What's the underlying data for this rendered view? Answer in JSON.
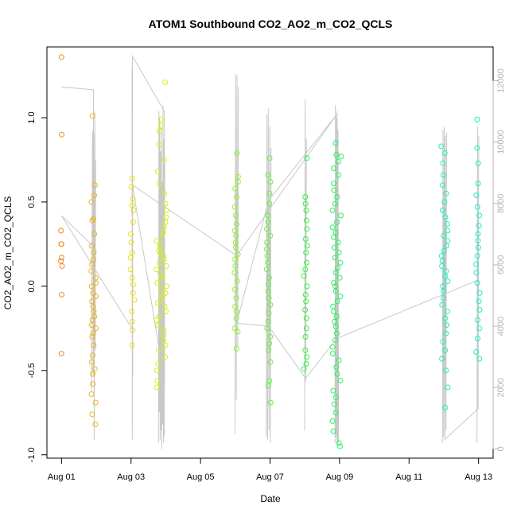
{
  "chart_data": {
    "type": "scatter",
    "title": "ATOM1 Southbound CO2_AO2_m_CO2_QCLS",
    "xlabel": "Date",
    "ylabel": "CO2_AO2_m_CO2_QCLS",
    "x_ticks": [
      {
        "day": 0,
        "label": "Aug 01"
      },
      {
        "day": 2,
        "label": "Aug 03"
      },
      {
        "day": 4,
        "label": "Aug 05"
      },
      {
        "day": 6,
        "label": "Aug 07"
      },
      {
        "day": 8,
        "label": "Aug 09"
      },
      {
        "day": 10,
        "label": "Aug 11"
      },
      {
        "day": 12,
        "label": "Aug 13"
      }
    ],
    "xlim": [
      -0.42,
      12.42
    ],
    "ylim": [
      -1.02,
      1.42
    ],
    "y_ticks": [
      -1.0,
      -0.5,
      0.0,
      0.5,
      1.0
    ],
    "y_tick_labels": [
      "-1.0",
      "-0.5",
      "0.0",
      "0.5",
      "1.0"
    ],
    "y2lim": [
      -300,
      13100
    ],
    "y2_ticks": [
      0,
      2000,
      4000,
      6000,
      8000,
      10000,
      12000
    ],
    "y2_tick_labels": [
      "0",
      "2000",
      "4000",
      "6000",
      "8000",
      "10000",
      "12000"
    ],
    "grid": false,
    "legend": "none",
    "colors": {
      "points_gradient": [
        "#f28c28",
        "#e8ee10",
        "#98f52a",
        "#27f43e",
        "#1af2a6",
        "#17f0c8"
      ],
      "altitude_line": "#c8c8c8",
      "right_axis": "#b3b3b3"
    },
    "point_groups": [
      {
        "day": 0.0,
        "spread": 0.02,
        "values": [
          1.36,
          0.9,
          0.33,
          0.25,
          0.25,
          0.17,
          0.15,
          0.12,
          -0.05,
          -0.4
        ]
      },
      {
        "day": 0.92,
        "spread": 0.07,
        "values": [
          1.01,
          0.6,
          0.54,
          0.5,
          0.4,
          0.39,
          0.31,
          0.24,
          0.2,
          0.16,
          0.13,
          0.09,
          0.05,
          0.02,
          0.0,
          -0.04,
          -0.06,
          -0.09,
          -0.12,
          -0.15,
          -0.18,
          -0.2,
          -0.23,
          -0.25,
          -0.28,
          -0.3,
          -0.35,
          -0.41,
          -0.45,
          -0.49,
          -0.52,
          -0.58,
          -0.64,
          -0.69,
          -0.76,
          -0.82
        ]
      },
      {
        "day": 2.04,
        "spread": 0.06,
        "values": [
          0.64,
          0.59,
          0.52,
          0.48,
          0.45,
          0.38,
          0.31,
          0.26,
          0.2,
          0.17,
          0.1,
          0.05,
          0.01,
          -0.04,
          -0.08,
          -0.15,
          -0.21,
          -0.26,
          -0.35
        ]
      },
      {
        "day": 2.88,
        "spread": 0.15,
        "values": [
          1.21,
          0.99,
          0.95,
          0.92,
          0.84,
          0.75,
          0.68,
          0.61,
          0.55,
          0.49,
          0.45,
          0.41,
          0.38,
          0.35,
          0.32,
          0.3,
          0.27,
          0.25,
          0.23,
          0.21,
          0.2,
          0.18,
          0.16,
          0.14,
          0.12,
          0.1,
          0.08,
          0.06,
          0.04,
          0.02,
          0.0,
          -0.02,
          -0.04,
          -0.06,
          -0.08,
          -0.1,
          -0.12,
          -0.15,
          -0.18,
          -0.2,
          -0.23,
          -0.26,
          -0.29,
          -0.32,
          -0.35,
          -0.38,
          -0.42,
          -0.46,
          -0.5,
          -0.56,
          -0.6
        ]
      },
      {
        "day": 5.04,
        "spread": 0.06,
        "values": [
          0.79,
          0.65,
          0.62,
          0.58,
          0.53,
          0.47,
          0.42,
          0.37,
          0.33,
          0.3,
          0.26,
          0.23,
          0.19,
          0.16,
          0.12,
          0.08,
          0.03,
          -0.02,
          -0.07,
          -0.12,
          -0.15,
          -0.19,
          -0.25,
          -0.27,
          -0.37
        ]
      },
      {
        "day": 5.96,
        "spread": 0.06,
        "values": [
          0.76,
          0.66,
          0.62,
          0.55,
          0.49,
          0.42,
          0.38,
          0.34,
          0.3,
          0.26,
          0.22,
          0.18,
          0.14,
          0.1,
          0.05,
          0.01,
          -0.03,
          -0.07,
          -0.11,
          -0.16,
          -0.21,
          -0.25,
          -0.3,
          -0.34,
          -0.38,
          -0.45,
          -0.56,
          -0.59,
          -0.69
        ]
      },
      {
        "day": 7.02,
        "spread": 0.05,
        "values": [
          0.76,
          0.53,
          0.49,
          0.45,
          0.39,
          0.34,
          0.28,
          0.24,
          0.2,
          0.14,
          0.1,
          0.06,
          0.0,
          -0.05,
          -0.09,
          -0.14,
          -0.19,
          -0.25,
          -0.3,
          -0.38,
          -0.42,
          -0.46,
          -0.49
        ]
      },
      {
        "day": 7.92,
        "spread": 0.13,
        "values": [
          0.85,
          0.78,
          0.77,
          0.74,
          0.7,
          0.66,
          0.61,
          0.57,
          0.53,
          0.49,
          0.45,
          0.42,
          0.38,
          0.35,
          0.32,
          0.29,
          0.26,
          0.23,
          0.2,
          0.17,
          0.14,
          0.11,
          0.08,
          0.05,
          0.02,
          0.0,
          -0.03,
          -0.06,
          -0.09,
          -0.12,
          -0.15,
          -0.18,
          -0.21,
          -0.24,
          -0.28,
          -0.32,
          -0.36,
          -0.4,
          -0.44,
          -0.48,
          -0.52,
          -0.56,
          -0.62,
          -0.66,
          -0.7,
          -0.75,
          -0.8,
          -0.86,
          -0.93,
          -0.95
        ]
      },
      {
        "day": 11.02,
        "spread": 0.1,
        "values": [
          0.83,
          0.79,
          0.73,
          0.66,
          0.6,
          0.55,
          0.5,
          0.45,
          0.41,
          0.37,
          0.33,
          0.3,
          0.27,
          0.24,
          0.21,
          0.18,
          0.15,
          0.12,
          0.09,
          0.06,
          0.03,
          0.0,
          -0.03,
          -0.07,
          -0.11,
          -0.15,
          -0.19,
          -0.23,
          -0.28,
          -0.33,
          -0.38,
          -0.43,
          -0.5,
          -0.6,
          -0.72
        ]
      },
      {
        "day": 11.98,
        "spread": 0.06,
        "values": [
          0.99,
          0.82,
          0.73,
          0.61,
          0.54,
          0.47,
          0.42,
          0.36,
          0.31,
          0.27,
          0.23,
          0.18,
          0.13,
          0.08,
          0.02,
          -0.04,
          -0.09,
          -0.14,
          -0.2,
          -0.25,
          -0.31,
          -0.39,
          -0.43
        ]
      }
    ],
    "altitude_spikes": [
      {
        "day": 0.92,
        "spread": 0.12,
        "values": [
          1900,
          4600,
          7100,
          9800,
          10400,
          2400,
          8900,
          10300,
          300,
          6500,
          11000,
          3200,
          9400
        ]
      },
      {
        "day": 2.04,
        "spread": 0.02,
        "values": [
          12400,
          300,
          12800,
          9500,
          2400
        ]
      },
      {
        "day": 2.88,
        "spread": 0.18,
        "values": [
          200,
          11000,
          1200,
          10800,
          300,
          9700,
          600,
          10500,
          0,
          8700,
          800,
          11200,
          200,
          10100,
          400,
          9300
        ]
      },
      {
        "day": 5.04,
        "spread": 0.1,
        "values": [
          500,
          12200,
          1600,
          12200,
          3300,
          11800
        ]
      },
      {
        "day": 5.96,
        "spread": 0.14,
        "values": [
          400,
          10900,
          300,
          11100,
          600,
          10500,
          200,
          9800
        ]
      },
      {
        "day": 7.02,
        "spread": 0.05,
        "values": [
          600,
          11400,
          2200,
          10100
        ]
      },
      {
        "day": 7.92,
        "spread": 0.1,
        "values": [
          200,
          11200,
          400,
          10800,
          300,
          11000,
          100,
          10400,
          200
        ]
      },
      {
        "day": 11.02,
        "spread": 0.12,
        "values": [
          200,
          10400,
          400,
          10500,
          300,
          10200,
          600,
          10300
        ]
      },
      {
        "day": 11.98,
        "spread": 0.05,
        "values": [
          200,
          10500,
          1300,
          10200
        ]
      }
    ],
    "altitude_path": [
      {
        "day": 0.0,
        "value": 11800
      },
      {
        "day": 0.92,
        "value": 11700
      },
      {
        "day": 0.92,
        "value": 6600
      },
      {
        "day": 0.0,
        "value": 7600
      },
      {
        "day": 2.04,
        "value": 3900
      },
      {
        "day": 2.04,
        "value": 12800
      },
      {
        "day": 2.96,
        "value": 11000
      },
      {
        "day": 2.96,
        "value": 2200
      },
      {
        "day": 2.04,
        "value": 8600
      },
      {
        "day": 5.04,
        "value": 6300
      },
      {
        "day": 7.92,
        "value": 10900
      },
      {
        "day": 5.96,
        "value": 8100
      },
      {
        "day": 5.04,
        "value": 4100
      },
      {
        "day": 5.96,
        "value": 4000
      },
      {
        "day": 7.02,
        "value": 2300
      },
      {
        "day": 7.92,
        "value": 3600
      },
      {
        "day": 11.98,
        "value": 5500
      },
      {
        "day": 11.98,
        "value": 1300
      },
      {
        "day": 11.02,
        "value": 300
      }
    ]
  }
}
